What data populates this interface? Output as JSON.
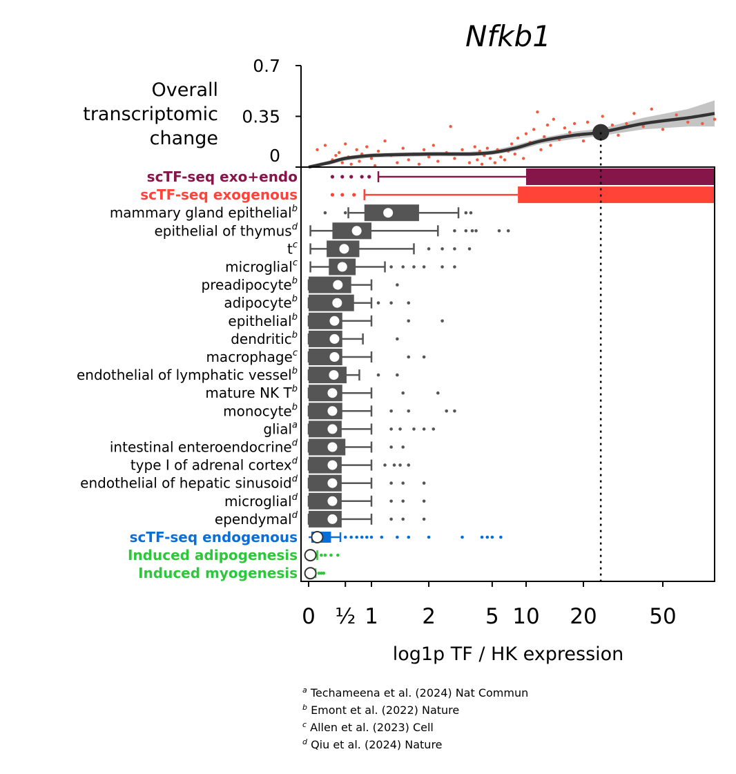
{
  "chart_data": {
    "type": "box",
    "title": "Nfkb1",
    "xlabel": "log1p TF / HK expression",
    "x_scale": "log1p",
    "xlim": [
      0,
      100
    ],
    "xticks": [
      {
        "value": 0,
        "label": "0"
      },
      {
        "value": 0.5,
        "label": "½"
      },
      {
        "value": 1,
        "label": "1"
      },
      {
        "value": 2,
        "label": "2"
      },
      {
        "value": 5,
        "label": "5"
      },
      {
        "value": 10,
        "label": "10"
      },
      {
        "value": 20,
        "label": "20"
      },
      {
        "value": 50,
        "label": "50"
      }
    ],
    "reference_line_x": 24.5,
    "top_panel": {
      "ylabel": "Overall transcriptomic change",
      "ylim": [
        0,
        0.7
      ],
      "yticks": [
        {
          "value": 0,
          "label": "0"
        },
        {
          "value": 0.35,
          "label": "0.35"
        },
        {
          "value": 0.7,
          "label": "0.7"
        }
      ],
      "trend": [
        [
          0,
          0
        ],
        [
          0.25,
          0.03
        ],
        [
          0.5,
          0.06
        ],
        [
          1,
          0.08
        ],
        [
          2,
          0.09
        ],
        [
          3,
          0.09
        ],
        [
          5,
          0.1
        ],
        [
          8,
          0.13
        ],
        [
          12,
          0.18
        ],
        [
          18,
          0.22
        ],
        [
          24.5,
          0.24
        ],
        [
          40,
          0.3
        ],
        [
          70,
          0.34
        ],
        [
          100,
          0.37
        ]
      ],
      "band_upper": [
        [
          0,
          0.01
        ],
        [
          0.25,
          0.045
        ],
        [
          0.5,
          0.075
        ],
        [
          1,
          0.095
        ],
        [
          2,
          0.105
        ],
        [
          3,
          0.105
        ],
        [
          5,
          0.115
        ],
        [
          8,
          0.15
        ],
        [
          12,
          0.2
        ],
        [
          18,
          0.245
        ],
        [
          24.5,
          0.265
        ],
        [
          40,
          0.34
        ],
        [
          70,
          0.4
        ],
        [
          100,
          0.46
        ]
      ],
      "band_lower": [
        [
          0,
          -0.01
        ],
        [
          0.25,
          0.015
        ],
        [
          0.5,
          0.045
        ],
        [
          1,
          0.065
        ],
        [
          2,
          0.075
        ],
        [
          3,
          0.075
        ],
        [
          5,
          0.085
        ],
        [
          8,
          0.11
        ],
        [
          12,
          0.16
        ],
        [
          18,
          0.195
        ],
        [
          24.5,
          0.215
        ],
        [
          40,
          0.26
        ],
        [
          70,
          0.28
        ],
        [
          100,
          0.28
        ]
      ],
      "highlight_point": {
        "x": 24.5,
        "y": 0.24
      },
      "point_color": "#f05a40",
      "points": [
        [
          0.1,
          0.12
        ],
        [
          0.15,
          0.02
        ],
        [
          0.2,
          0.15
        ],
        [
          0.3,
          0.05
        ],
        [
          0.35,
          0.08
        ],
        [
          0.4,
          0.1
        ],
        [
          0.45,
          0.03
        ],
        [
          0.5,
          0.16
        ],
        [
          0.55,
          0.07
        ],
        [
          0.6,
          0.02
        ],
        [
          0.7,
          0.12
        ],
        [
          0.75,
          0.04
        ],
        [
          0.8,
          0.09
        ],
        [
          0.9,
          0.14
        ],
        [
          1.0,
          0.06
        ],
        [
          1.05,
          0.01
        ],
        [
          1.1,
          0.11
        ],
        [
          1.2,
          0.18
        ],
        [
          1.3,
          0.08
        ],
        [
          1.4,
          0.03
        ],
        [
          1.5,
          0.13
        ],
        [
          1.6,
          0.05
        ],
        [
          1.7,
          0.09
        ],
        [
          1.8,
          0.02
        ],
        [
          1.9,
          0.12
        ],
        [
          2.0,
          0.07
        ],
        [
          2.1,
          0.15
        ],
        [
          2.2,
          0.04
        ],
        [
          2.4,
          0.1
        ],
        [
          2.5,
          0.28
        ],
        [
          2.6,
          0.06
        ],
        [
          2.8,
          0.12
        ],
        [
          3.0,
          0.03
        ],
        [
          3.2,
          0.09
        ],
        [
          3.4,
          0.14
        ],
        [
          3.6,
          0.05
        ],
        [
          3.8,
          0.11
        ],
        [
          4.0,
          0.02
        ],
        [
          4.2,
          0.08
        ],
        [
          4.5,
          0.13
        ],
        [
          4.8,
          0.06
        ],
        [
          5.0,
          0.1
        ],
        [
          5.3,
          0.03
        ],
        [
          5.6,
          0.12
        ],
        [
          6.0,
          0.07
        ],
        [
          6.5,
          0.05
        ],
        [
          7.0,
          0.11
        ],
        [
          7.5,
          0.16
        ],
        [
          8.0,
          0.09
        ],
        [
          8.5,
          0.2
        ],
        [
          9.0,
          0.14
        ],
        [
          9.5,
          0.06
        ],
        [
          10,
          0.23
        ],
        [
          10.5,
          0.17
        ],
        [
          11,
          0.26
        ],
        [
          11.5,
          0.38
        ],
        [
          12,
          0.12
        ],
        [
          12.5,
          0.21
        ],
        [
          13,
          0.29
        ],
        [
          13.5,
          0.15
        ],
        [
          14,
          0.33
        ],
        [
          15,
          0.19
        ],
        [
          16,
          0.27
        ],
        [
          17,
          0.24
        ],
        [
          18,
          0.3
        ],
        [
          19,
          0.22
        ],
        [
          20,
          0.18
        ],
        [
          21,
          0.31
        ],
        [
          23,
          0.24
        ],
        [
          25,
          0.35
        ],
        [
          28,
          0.29
        ],
        [
          30,
          0.22
        ],
        [
          33,
          0.3
        ],
        [
          36,
          0.37
        ],
        [
          40,
          0.28
        ],
        [
          44,
          0.4
        ],
        [
          50,
          0.26
        ],
        [
          60,
          0.36
        ],
        [
          70,
          0.31
        ],
        [
          85,
          0.3
        ],
        [
          100,
          0.33
        ]
      ]
    },
    "rows": [
      {
        "label": "scTF-seq exo+endo",
        "kind": "highlight",
        "color": "#861549",
        "box": {
          "q1": 10,
          "q3": 100
        },
        "whisker_low": 1.1,
        "outliers": [
          0.3,
          0.45,
          0.6,
          0.8,
          0.95
        ]
      },
      {
        "label": "scTF-seq exogenous",
        "kind": "highlight",
        "color": "#ff4338",
        "box": {
          "q1": 8.5,
          "q3": 100
        },
        "whisker_low": 0.85,
        "outliers": [
          0.3,
          0.45,
          0.65
        ]
      },
      {
        "label": "mammary gland epithelial",
        "sup": "b",
        "kind": "ref",
        "box": {
          "q1": 0.85,
          "median": 1.25,
          "q3": 1.8
        },
        "whiskers": [
          0.55,
          2.7
        ],
        "outliers": [
          0.2,
          0.5,
          2.9,
          3.1
        ]
      },
      {
        "label": "epithelial of thymus",
        "sup": "d",
        "kind": "ref",
        "box": {
          "q1": 0.3,
          "median": 0.7,
          "q3": 1.0
        },
        "whiskers": [
          0.02,
          2.2
        ],
        "outliers": [
          2.6,
          2.9,
          3.2,
          3.5,
          5.8,
          7.0
        ]
      },
      {
        "label": "t",
        "sup": "c",
        "kind": "ref",
        "box": {
          "q1": 0.22,
          "median": 0.48,
          "q3": 0.75
        },
        "whiskers": [
          0.02,
          1.7
        ],
        "outliers": [
          2.0,
          2.3,
          2.6,
          3.0
        ]
      },
      {
        "label": "microglial",
        "sup": "c",
        "kind": "ref",
        "box": {
          "q1": 0.25,
          "median": 0.45,
          "q3": 0.68
        },
        "whiskers": [
          0.02,
          1.2
        ],
        "outliers": [
          1.3,
          1.5,
          1.7,
          1.9,
          2.3,
          2.6
        ]
      },
      {
        "label": "preadipocyte",
        "sup": "b",
        "kind": "ref",
        "box": {
          "q1": 0.0,
          "median": 0.38,
          "q3": 0.6
        },
        "whiskers": [
          0.0,
          1.0
        ],
        "outliers": [
          1.4
        ]
      },
      {
        "label": "adipocyte",
        "sup": "b",
        "kind": "ref",
        "box": {
          "q1": 0.0,
          "median": 0.37,
          "q3": 0.65
        },
        "whiskers": [
          0.0,
          1.0
        ],
        "outliers": [
          1.1,
          1.3,
          1.6
        ]
      },
      {
        "label": "epithelial",
        "sup": "b",
        "kind": "ref",
        "box": {
          "q1": 0.0,
          "median": 0.33,
          "q3": 0.45
        },
        "whiskers": [
          0.0,
          1.0
        ],
        "outliers": [
          1.6,
          2.3
        ]
      },
      {
        "label": "dendritic",
        "sup": "b",
        "kind": "ref",
        "box": {
          "q1": 0.0,
          "median": 0.33,
          "q3": 0.45
        },
        "whiskers": [
          0.0,
          0.82
        ],
        "outliers": [
          1.4
        ]
      },
      {
        "label": "macrophage",
        "sup": "c",
        "kind": "ref",
        "box": {
          "q1": 0.0,
          "median": 0.33,
          "q3": 0.45
        },
        "whiskers": [
          0.0,
          1.0
        ],
        "outliers": [
          1.6,
          1.9
        ]
      },
      {
        "label": "endothelial of lymphatic vessel",
        "sup": "b",
        "kind": "ref",
        "box": {
          "q1": 0.0,
          "median": 0.32,
          "q3": 0.52
        },
        "whiskers": [
          0.0,
          0.75
        ],
        "outliers": [
          1.1,
          1.4
        ]
      },
      {
        "label": "mature NK T",
        "sup": "b",
        "kind": "ref",
        "box": {
          "q1": 0.0,
          "median": 0.3,
          "q3": 0.45
        },
        "whiskers": [
          0.0,
          1.0
        ],
        "outliers": [
          1.5,
          2.2
        ]
      },
      {
        "label": "monocyte",
        "sup": "b",
        "kind": "ref",
        "box": {
          "q1": 0.0,
          "median": 0.3,
          "q3": 0.45
        },
        "whiskers": [
          0.0,
          1.0
        ],
        "outliers": [
          1.3,
          1.6,
          2.4,
          2.6
        ]
      },
      {
        "label": "glial",
        "sup": "a",
        "kind": "ref",
        "box": {
          "q1": 0.0,
          "median": 0.3,
          "q3": 0.44
        },
        "whiskers": [
          0.0,
          1.0
        ],
        "outliers": [
          1.3,
          1.45,
          1.7,
          1.9,
          2.1
        ]
      },
      {
        "label": "intestinal enteroendocrine",
        "sup": "d",
        "kind": "ref",
        "box": {
          "q1": 0.0,
          "median": 0.3,
          "q3": 0.5
        },
        "whiskers": [
          0.0,
          1.0
        ],
        "outliers": [
          1.3,
          1.5
        ]
      },
      {
        "label": "type I of adrenal cortex",
        "sup": "d",
        "kind": "ref",
        "box": {
          "q1": 0.0,
          "median": 0.3,
          "q3": 0.44
        },
        "whiskers": [
          0.0,
          1.0
        ],
        "outliers": [
          1.2,
          1.35,
          1.45,
          1.6
        ]
      },
      {
        "label": "endothelial of hepatic sinusoid",
        "sup": "d",
        "kind": "ref",
        "box": {
          "q1": 0.0,
          "median": 0.3,
          "q3": 0.44
        },
        "whiskers": [
          0.0,
          1.0
        ],
        "outliers": [
          1.3,
          1.5,
          1.9
        ]
      },
      {
        "label": "microglial",
        "sup": "d",
        "kind": "ref",
        "box": {
          "q1": 0.0,
          "median": 0.3,
          "q3": 0.44
        },
        "whiskers": [
          0.0,
          1.0
        ],
        "outliers": [
          1.3,
          1.5,
          1.9
        ]
      },
      {
        "label": "ependymal",
        "sup": "d",
        "kind": "ref",
        "box": {
          "q1": 0.0,
          "median": 0.3,
          "q3": 0.44
        },
        "whiskers": [
          0.0,
          1.0
        ],
        "outliers": [
          1.3,
          1.5,
          1.9
        ]
      },
      {
        "label": "scTF-seq endogenous",
        "kind": "dist",
        "color": "#0a6ed8",
        "box": {
          "q1": 0.03,
          "median": 0.1,
          "q3": 0.28
        },
        "whiskers": [
          0.0,
          0.42
        ],
        "outliers": [
          0.5,
          0.6,
          0.7,
          0.8,
          0.9,
          1.0,
          1.15,
          1.4,
          1.6,
          2.0,
          2.8,
          4.0,
          4.5,
          5.0,
          6.0
        ]
      },
      {
        "label": "Induced adipogenesis",
        "kind": "dist",
        "color": "#2ec63a",
        "box": {
          "q1": 0.0,
          "median": 0.02,
          "q3": 0.05
        },
        "whiskers": [
          0.0,
          0.1
        ],
        "outliers": [
          0.15,
          0.2,
          0.28,
          0.38
        ]
      },
      {
        "label": "Induced myogenesis",
        "kind": "dist",
        "color": "#2ec63a",
        "box": {
          "q1": 0.0,
          "median": 0.02,
          "q3": 0.04
        },
        "whiskers": [
          0.0,
          0.08
        ],
        "outliers": [
          0.12,
          0.15,
          0.18
        ]
      }
    ],
    "references": [
      {
        "sup": "a",
        "text": "Techameena et al. (2024) Nat Commun"
      },
      {
        "sup": "b",
        "text": "Emont et al. (2022) Nature"
      },
      {
        "sup": "c",
        "text": "Allen et al. (2023) Cell"
      },
      {
        "sup": "d",
        "text": "Qiu et al. (2024) Nature"
      }
    ],
    "colors": {
      "box": "#555555",
      "trend": "#333333",
      "band": "#c4c4c4",
      "highlight_point": "#333333"
    }
  }
}
